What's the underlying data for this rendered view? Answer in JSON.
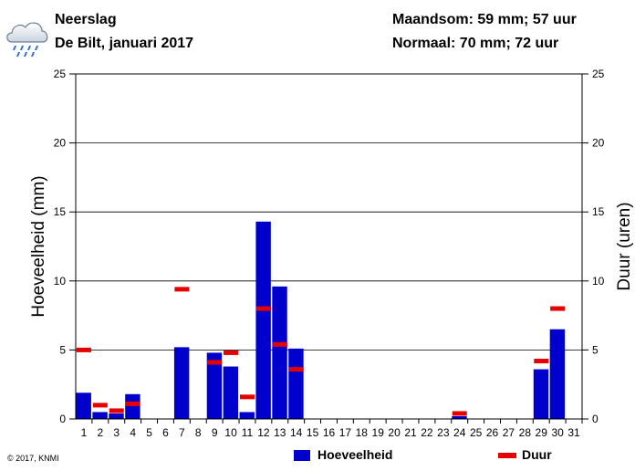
{
  "header": {
    "title": "Neerslag",
    "location_period": "De Bilt, januari 2017",
    "month_total": "Maandsom: 59 mm; 57 uur",
    "normal": "Normaal: 70 mm; 72 uur",
    "weather_icon": "rain-cloud-icon"
  },
  "copyright": "© 2017, KNMI",
  "legend": {
    "amount_label": "Hoeveelheid",
    "duration_label": "Duur"
  },
  "colors": {
    "bar": "#0000cc",
    "duration": "#e60000",
    "grid": "#000000"
  },
  "chart_data": {
    "type": "bar",
    "ylabel": "Hoeveelheid (mm)",
    "y2label": "Duur (uren)",
    "ylim": [
      0,
      25
    ],
    "y2lim": [
      0,
      25
    ],
    "yticks": [
      0,
      5,
      10,
      15,
      20,
      25
    ],
    "grid": true,
    "legend_position": "bottom",
    "categories": [
      "1",
      "2",
      "3",
      "4",
      "5",
      "6",
      "7",
      "8",
      "9",
      "10",
      "11",
      "12",
      "13",
      "14",
      "15",
      "16",
      "17",
      "18",
      "19",
      "20",
      "21",
      "22",
      "23",
      "24",
      "25",
      "26",
      "27",
      "28",
      "29",
      "30",
      "31"
    ],
    "series": [
      {
        "name": "Hoeveelheid",
        "kind": "bar",
        "values": [
          1.9,
          0.5,
          0.4,
          1.8,
          0,
          0,
          5.2,
          0,
          4.8,
          3.8,
          0.5,
          14.3,
          9.6,
          5.1,
          0,
          0,
          0,
          0,
          0,
          0,
          0,
          0,
          0,
          0.2,
          0,
          0,
          0,
          0,
          3.6,
          6.5,
          0
        ]
      },
      {
        "name": "Duur",
        "kind": "marker",
        "values": [
          5.0,
          1.0,
          0.6,
          1.1,
          0,
          0,
          9.4,
          0,
          4.1,
          4.8,
          1.6,
          8.0,
          5.4,
          3.6,
          0,
          0,
          0,
          0,
          0,
          0,
          0,
          0,
          0,
          0.4,
          0,
          0,
          0,
          0,
          4.2,
          8.0,
          0
        ]
      }
    ]
  }
}
